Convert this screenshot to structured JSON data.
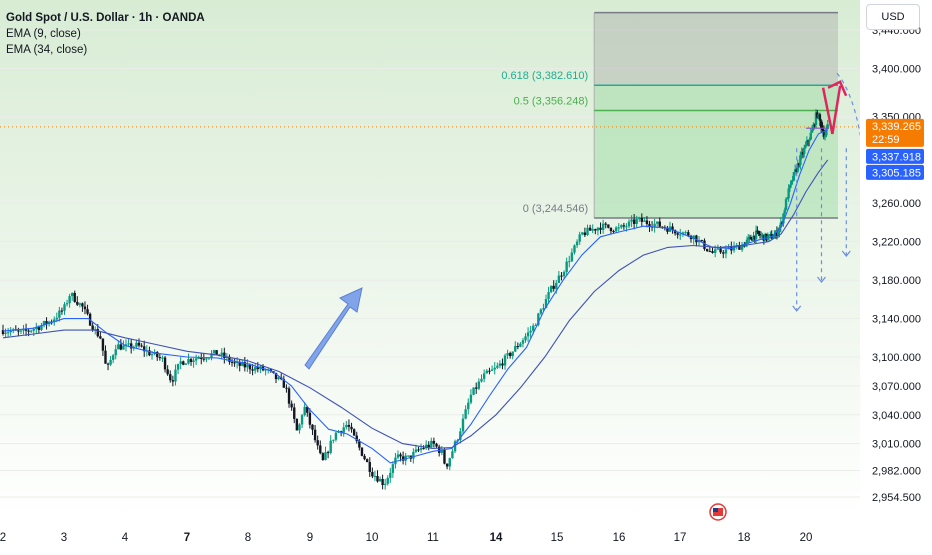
{
  "chart_data": {
    "type": "line",
    "title": "Gold Spot / U.S. Dollar · 1h · OANDA",
    "currency": "USD",
    "ylim": [
      2935,
      3465
    ],
    "y_ticks": [
      "3,440.000",
      "3,400.000",
      "3,350.000",
      "3,260.000",
      "3,220.000",
      "3,180.000",
      "3,140.000",
      "3,100.000",
      "3,070.000",
      "3,040.000",
      "3,010.000",
      "2,982.000",
      "2,954.500"
    ],
    "y_tick_values": [
      3440,
      3400,
      3350,
      3260,
      3220,
      3180,
      3140,
      3100,
      3070,
      3040,
      3010,
      2982,
      2954.5
    ],
    "x_ticks": [
      {
        "label": "2",
        "day": 2,
        "bold": false
      },
      {
        "label": "3",
        "day": 3,
        "bold": false
      },
      {
        "label": "4",
        "day": 4,
        "bold": false
      },
      {
        "label": "7",
        "day": 7,
        "bold": true
      },
      {
        "label": "8",
        "day": 8,
        "bold": false
      },
      {
        "label": "9",
        "day": 9,
        "bold": false
      },
      {
        "label": "10",
        "day": 10,
        "bold": false
      },
      {
        "label": "11",
        "day": 11,
        "bold": false
      },
      {
        "label": "14",
        "day": 14,
        "bold": true
      },
      {
        "label": "15",
        "day": 15,
        "bold": false
      },
      {
        "label": "16",
        "day": 16,
        "bold": false
      },
      {
        "label": "17",
        "day": 17,
        "bold": false
      },
      {
        "label": "18",
        "day": 18,
        "bold": false
      },
      {
        "label": "20",
        "day": 20,
        "bold": false
      }
    ],
    "fib_levels": [
      {
        "label": "0.618 (3,382.610)",
        "value": 3382.61,
        "color": "#22ab94"
      },
      {
        "label": "0.5 (3,356.248)",
        "value": 3356.248,
        "color": "#4caf50"
      },
      {
        "label": "0 (3,244.546)",
        "value": 3244.546,
        "color": "#787b86"
      }
    ],
    "fib_top_value": 3458,
    "fib_start_day": 11.6,
    "price_badges": [
      {
        "label": "3,339.265",
        "sub": "22:59",
        "value": 3339.265,
        "color": "#f57c00"
      },
      {
        "label": "3,337.918",
        "value": 3337.918,
        "color": "#2962ff"
      },
      {
        "label": "3,305.185",
        "value": 3305.185,
        "color": "#2962ff"
      }
    ],
    "series": [
      {
        "name": "Gold Spot",
        "points": [
          [
            2.0,
            3128
          ],
          [
            2.3,
            3125
          ],
          [
            2.6,
            3132
          ],
          [
            2.8,
            3138
          ],
          [
            3.0,
            3150
          ],
          [
            3.1,
            3166
          ],
          [
            3.3,
            3152
          ],
          [
            3.5,
            3128
          ],
          [
            3.6,
            3120
          ],
          [
            3.7,
            3085
          ],
          [
            3.85,
            3112
          ],
          [
            4.0,
            3110
          ],
          [
            4.2,
            3112
          ],
          [
            4.4,
            3104
          ],
          [
            4.6,
            3098
          ],
          [
            4.75,
            3075
          ],
          [
            4.9,
            3095
          ],
          [
            5.2,
            3100
          ],
          [
            5.5,
            3104
          ],
          [
            5.8,
            3092
          ],
          [
            6.0,
            3090
          ],
          [
            6.3,
            3086
          ],
          [
            6.6,
            3070
          ],
          [
            6.8,
            3020
          ],
          [
            6.9,
            3050
          ],
          [
            7.0,
            3030
          ],
          [
            7.2,
            2990
          ],
          [
            7.4,
            3020
          ],
          [
            7.6,
            3030
          ],
          [
            7.8,
            3005
          ],
          [
            8.0,
            2980
          ],
          [
            8.2,
            2968
          ],
          [
            8.4,
            2995
          ],
          [
            8.6,
            2995
          ],
          [
            8.8,
            3005
          ],
          [
            9.0,
            3010
          ],
          [
            9.15,
            3000
          ],
          [
            9.2,
            2985
          ],
          [
            9.4,
            3018
          ],
          [
            9.6,
            3060
          ],
          [
            9.8,
            3080
          ],
          [
            10.0,
            3088
          ],
          [
            10.3,
            3108
          ],
          [
            10.6,
            3130
          ],
          [
            10.9,
            3170
          ],
          [
            11.1,
            3190
          ],
          [
            11.4,
            3228
          ],
          [
            11.7,
            3236
          ],
          [
            12.0,
            3233
          ],
          [
            12.3,
            3242
          ],
          [
            12.6,
            3238
          ],
          [
            12.9,
            3232
          ],
          [
            13.2,
            3226
          ],
          [
            13.4,
            3214
          ],
          [
            13.5,
            3208
          ],
          [
            13.8,
            3212
          ],
          [
            14.1,
            3220
          ],
          [
            14.4,
            3228
          ],
          [
            14.7,
            3224
          ],
          [
            15.0,
            3226
          ],
          [
            15.2,
            3238
          ],
          [
            15.4,
            3268
          ],
          [
            15.6,
            3288
          ],
          [
            15.8,
            3305
          ],
          [
            16.0,
            3320
          ],
          [
            16.2,
            3335
          ],
          [
            16.35,
            3354
          ],
          [
            16.5,
            3340
          ],
          [
            16.6,
            3330
          ],
          [
            16.7,
            3339
          ]
        ]
      },
      {
        "name": "EMA (9, close)",
        "color": "#2962ff",
        "points": [
          [
            2.0,
            3127
          ],
          [
            2.5,
            3130
          ],
          [
            3.0,
            3140
          ],
          [
            3.4,
            3140
          ],
          [
            3.7,
            3125
          ],
          [
            4.0,
            3112
          ],
          [
            4.5,
            3104
          ],
          [
            5.0,
            3100
          ],
          [
            5.5,
            3099
          ],
          [
            6.0,
            3093
          ],
          [
            6.4,
            3085
          ],
          [
            6.7,
            3070
          ],
          [
            7.0,
            3045
          ],
          [
            7.3,
            3025
          ],
          [
            7.6,
            3020
          ],
          [
            8.0,
            3005
          ],
          [
            8.3,
            2990
          ],
          [
            8.6,
            2995
          ],
          [
            9.0,
            3002
          ],
          [
            9.3,
            3005
          ],
          [
            9.6,
            3030
          ],
          [
            9.9,
            3060
          ],
          [
            10.2,
            3088
          ],
          [
            10.5,
            3110
          ],
          [
            10.8,
            3150
          ],
          [
            11.1,
            3180
          ],
          [
            11.4,
            3206
          ],
          [
            11.7,
            3225
          ],
          [
            12.0,
            3230
          ],
          [
            12.4,
            3236
          ],
          [
            12.8,
            3234
          ],
          [
            13.2,
            3224
          ],
          [
            13.5,
            3214
          ],
          [
            13.8,
            3213
          ],
          [
            14.1,
            3218
          ],
          [
            14.5,
            3222
          ],
          [
            14.9,
            3225
          ],
          [
            15.2,
            3235
          ],
          [
            15.5,
            3260
          ],
          [
            15.8,
            3290
          ],
          [
            16.1,
            3315
          ],
          [
            16.4,
            3332
          ],
          [
            16.7,
            3336
          ]
        ]
      },
      {
        "name": "EMA (34, close)",
        "color": "#3f51b5",
        "points": [
          [
            2.0,
            3120
          ],
          [
            2.5,
            3124
          ],
          [
            3.0,
            3128
          ],
          [
            3.5,
            3128
          ],
          [
            4.0,
            3120
          ],
          [
            4.5,
            3113
          ],
          [
            5.0,
            3106
          ],
          [
            5.5,
            3102
          ],
          [
            6.0,
            3096
          ],
          [
            6.5,
            3085
          ],
          [
            7.0,
            3068
          ],
          [
            7.5,
            3048
          ],
          [
            8.0,
            3026
          ],
          [
            8.5,
            3010
          ],
          [
            9.0,
            3005
          ],
          [
            9.3,
            3006
          ],
          [
            9.6,
            3018
          ],
          [
            10.0,
            3040
          ],
          [
            10.4,
            3068
          ],
          [
            10.8,
            3100
          ],
          [
            11.2,
            3138
          ],
          [
            11.6,
            3168
          ],
          [
            12.0,
            3190
          ],
          [
            12.4,
            3206
          ],
          [
            12.8,
            3214
          ],
          [
            13.2,
            3216
          ],
          [
            13.6,
            3214
          ],
          [
            14.0,
            3216
          ],
          [
            14.4,
            3218
          ],
          [
            14.8,
            3220
          ],
          [
            15.2,
            3228
          ],
          [
            15.6,
            3248
          ],
          [
            16.0,
            3272
          ],
          [
            16.4,
            3292
          ],
          [
            16.7,
            3305
          ]
        ]
      }
    ],
    "projections": {
      "up_path": [
        [
          16.55,
          3380
        ],
        [
          16.85,
          3332
        ],
        [
          17.1,
          3382
        ]
      ],
      "support_level": 3337.918,
      "down_targets": [
        [
          15.7,
          3148
        ],
        [
          16.5,
          3178
        ],
        [
          17.3,
          3205
        ],
        [
          18.0,
          3243
        ]
      ]
    }
  }
}
